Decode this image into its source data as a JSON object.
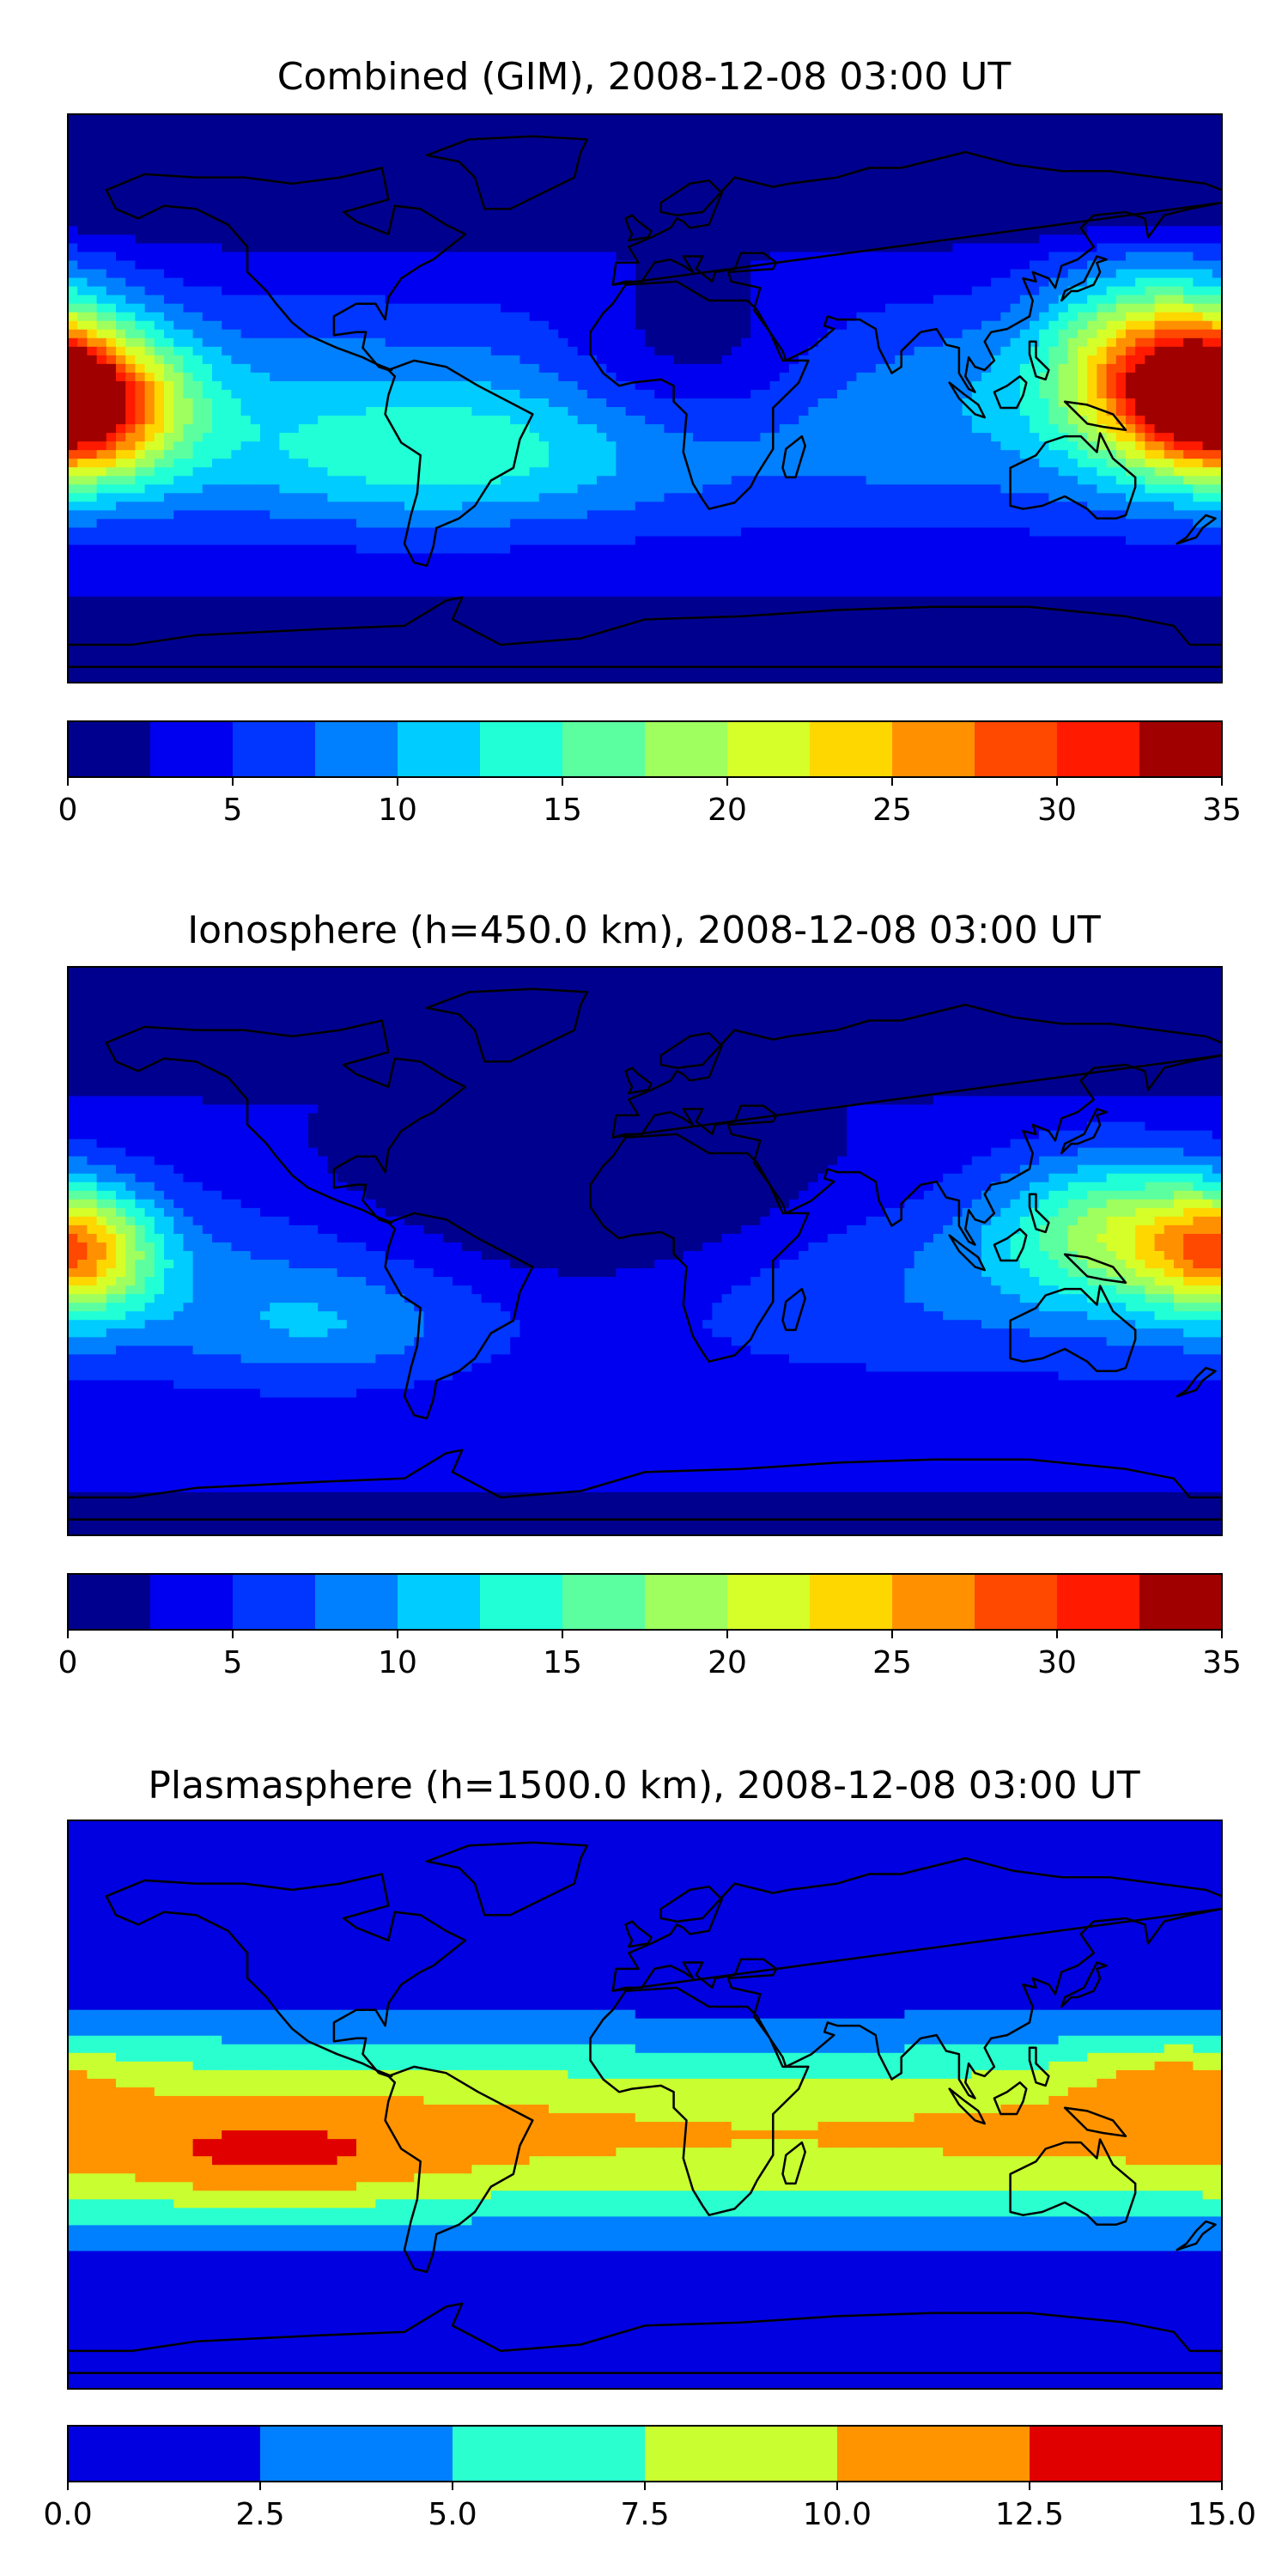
{
  "chart_data": [
    {
      "type": "heatmap",
      "title": "Combined (GIM), 2008-12-08 03:00 UT",
      "colorbar": {
        "levels": [
          0,
          2.5,
          5,
          7.5,
          10,
          12.5,
          15,
          17.5,
          20,
          22.5,
          25,
          27.5,
          30,
          32.5,
          35
        ],
        "ticks": [
          0,
          5,
          10,
          15,
          20,
          25,
          30,
          35
        ],
        "tick_labels": [
          "0",
          "5",
          "10",
          "15",
          "20",
          "25",
          "30",
          "35"
        ],
        "colors": [
          "#00008f",
          "#0000f0",
          "#0036ff",
          "#0080ff",
          "#00ccff",
          "#21ffd6",
          "#5cffa0",
          "#9fff5e",
          "#d6ff29",
          "#ffd700",
          "#ff9100",
          "#ff4800",
          "#ff1a00",
          "#a10000"
        ]
      },
      "features": [
        {
          "name": "max_pacific_west",
          "lon": -175,
          "lat": -5,
          "value": 33
        },
        {
          "name": "max_west_pacific",
          "lon": 158,
          "lat": 15,
          "value": 31
        },
        {
          "name": "max_east_edge",
          "lon": 178,
          "lat": 2,
          "value": 31
        },
        {
          "name": "south_america_band",
          "lon": -50,
          "lat": -10,
          "value": 18
        },
        {
          "name": "africa_low",
          "lon": 15,
          "lat": 5,
          "value": 6
        },
        {
          "name": "north_low",
          "lon": 0,
          "lat": 78,
          "value": 1
        }
      ]
    },
    {
      "type": "heatmap",
      "title": "Ionosphere  (h=450.0 km), 2008-12-08 03:00 UT",
      "colorbar": {
        "levels": [
          0,
          2.5,
          5,
          7.5,
          10,
          12.5,
          15,
          17.5,
          20,
          22.5,
          25,
          27.5,
          30,
          32.5,
          35
        ],
        "ticks": [
          0,
          5,
          10,
          15,
          20,
          25,
          30,
          35
        ],
        "tick_labels": [
          "0",
          "5",
          "10",
          "15",
          "20",
          "25",
          "30",
          "35"
        ],
        "colors": [
          "#00008f",
          "#0000f0",
          "#0036ff",
          "#0080ff",
          "#00ccff",
          "#21ffd6",
          "#5cffa0",
          "#9fff5e",
          "#d6ff29",
          "#ffd700",
          "#ff9100",
          "#ff4800",
          "#ff1a00",
          "#a10000"
        ]
      },
      "features": [
        {
          "name": "max_pacific_west",
          "lon": -178,
          "lat": 0,
          "value": 25
        },
        {
          "name": "max_east_edge",
          "lon": 178,
          "lat": 0,
          "value": 25
        },
        {
          "name": "west_pacific_band",
          "lon": 140,
          "lat": 10,
          "value": 18
        },
        {
          "name": "atlantic_low",
          "lon": -20,
          "lat": 10,
          "value": 1
        },
        {
          "name": "north_low",
          "lon": 0,
          "lat": 78,
          "value": 1
        }
      ]
    },
    {
      "type": "heatmap",
      "title": "Plasmasphere (h=1500.0 km), 2008-12-08 03:00 UT",
      "colorbar": {
        "levels": [
          0,
          2.5,
          5,
          7.5,
          10,
          12.5,
          15
        ],
        "ticks": [
          0,
          2.5,
          5,
          7.5,
          10,
          12.5,
          15
        ],
        "tick_labels": [
          "0.0",
          "2.5",
          "5.0",
          "7.5",
          "10.0",
          "12.5",
          "15.0"
        ],
        "colors": [
          "#0000e0",
          "#0080ff",
          "#2affd0",
          "#c9ff30",
          "#ff9400",
          "#e00000"
        ]
      },
      "features": [
        {
          "name": "max_south_pacific",
          "lon": -112,
          "lat": -18,
          "value": 11
        },
        {
          "name": "max_west_pacific",
          "lon": 165,
          "lat": 8,
          "value": 11
        },
        {
          "name": "tropical_band",
          "lon": -60,
          "lat": -10,
          "value": 9
        },
        {
          "name": "high_latitude_low",
          "lon": 0,
          "lat": 75,
          "value": 1
        }
      ]
    }
  ]
}
